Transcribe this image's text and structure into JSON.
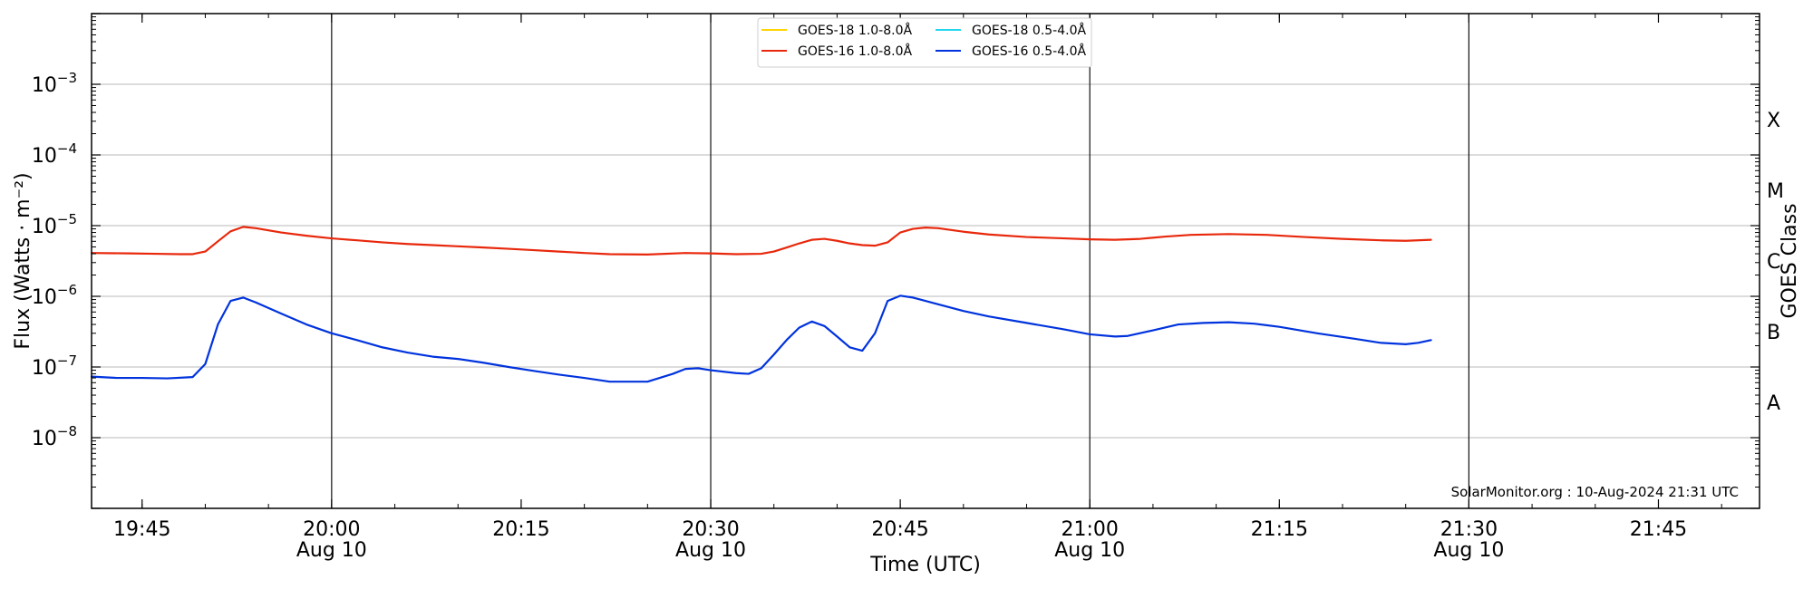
{
  "chart_data": {
    "type": "line",
    "xlabel": "Time (UTC)",
    "ylabel": "Flux (Watts · m⁻²)",
    "right_ylabel": "GOES Class",
    "x_range": [
      "19:41",
      "21:53"
    ],
    "ylim": [
      1e-09,
      0.01
    ],
    "y_scale": "log",
    "grid": "horizontal major gridlines",
    "x_ticks": [
      {
        "time": "19:45",
        "label": "19:45",
        "date_label": ""
      },
      {
        "time": "20:00",
        "label": "20:00",
        "date_label": "Aug 10"
      },
      {
        "time": "20:15",
        "label": "20:15",
        "date_label": ""
      },
      {
        "time": "20:30",
        "label": "20:30",
        "date_label": "Aug 10"
      },
      {
        "time": "20:45",
        "label": "20:45",
        "date_label": ""
      },
      {
        "time": "21:00",
        "label": "21:00",
        "date_label": "Aug 10"
      },
      {
        "time": "21:15",
        "label": "21:15",
        "date_label": ""
      },
      {
        "time": "21:30",
        "label": "21:30",
        "date_label": "Aug 10"
      },
      {
        "time": "21:45",
        "label": "21:45",
        "date_label": ""
      }
    ],
    "vertical_markers": [
      "20:00",
      "20:30",
      "21:00",
      "21:30"
    ],
    "y_ticks": [
      {
        "value": 1e-08,
        "base": "10",
        "exp": "−8"
      },
      {
        "value": 1e-07,
        "base": "10",
        "exp": "−7"
      },
      {
        "value": 1e-06,
        "base": "10",
        "exp": "−6"
      },
      {
        "value": 1e-05,
        "base": "10",
        "exp": "−5"
      },
      {
        "value": 0.0001,
        "base": "10",
        "exp": "−4"
      },
      {
        "value": 0.001,
        "base": "10",
        "exp": "−3"
      }
    ],
    "goes_classes": [
      {
        "label": "A",
        "value": 3.16e-08
      },
      {
        "label": "B",
        "value": 3.16e-07
      },
      {
        "label": "C",
        "value": 3.16e-06
      },
      {
        "label": "M",
        "value": 3.16e-05
      },
      {
        "label": "X",
        "value": 0.000316
      }
    ],
    "credit": "SolarMonitor.org : 10-Aug-2024 21:31 UTC",
    "legend": {
      "placement": "top-center",
      "entries": [
        {
          "name": "GOES-18 1.0-8.0Å",
          "color": "#ffd400"
        },
        {
          "name": "GOES-16 1.0-8.0Å",
          "color": "#e8280c"
        },
        {
          "name": "GOES-18 0.5-4.0Å",
          "color": "#22d6ee"
        },
        {
          "name": "GOES-16 0.5-4.0Å",
          "color": "#0033dd"
        }
      ]
    },
    "series": [
      {
        "name": "GOES-16 1.0-8.0Å",
        "color": "#e8280c",
        "points": [
          [
            "19:41",
            4.1e-06
          ],
          [
            "19:44",
            4.05e-06
          ],
          [
            "19:46",
            4e-06
          ],
          [
            "19:48",
            3.95e-06
          ],
          [
            "19:49",
            3.95e-06
          ],
          [
            "19:50",
            4.3e-06
          ],
          [
            "19:51",
            6e-06
          ],
          [
            "19:52",
            8.3e-06
          ],
          [
            "19:53",
            9.6e-06
          ],
          [
            "19:54",
            9.2e-06
          ],
          [
            "19:56",
            8e-06
          ],
          [
            "19:58",
            7.2e-06
          ],
          [
            "20:00",
            6.6e-06
          ],
          [
            "20:02",
            6.2e-06
          ],
          [
            "20:04",
            5.8e-06
          ],
          [
            "20:06",
            5.5e-06
          ],
          [
            "20:08",
            5.3e-06
          ],
          [
            "20:10",
            5.1e-06
          ],
          [
            "20:12",
            4.9e-06
          ],
          [
            "20:14",
            4.7e-06
          ],
          [
            "20:16",
            4.5e-06
          ],
          [
            "20:18",
            4.3e-06
          ],
          [
            "20:20",
            4.1e-06
          ],
          [
            "20:22",
            3.95e-06
          ],
          [
            "20:25",
            3.9e-06
          ],
          [
            "20:28",
            4.1e-06
          ],
          [
            "20:30",
            4.05e-06
          ],
          [
            "20:32",
            3.95e-06
          ],
          [
            "20:34",
            4e-06
          ],
          [
            "20:35",
            4.3e-06
          ],
          [
            "20:36",
            4.9e-06
          ],
          [
            "20:37",
            5.6e-06
          ],
          [
            "20:38",
            6.3e-06
          ],
          [
            "20:39",
            6.5e-06
          ],
          [
            "20:40",
            6.1e-06
          ],
          [
            "20:41",
            5.6e-06
          ],
          [
            "20:42",
            5.3e-06
          ],
          [
            "20:43",
            5.2e-06
          ],
          [
            "20:44",
            5.8e-06
          ],
          [
            "20:45",
            8e-06
          ],
          [
            "20:46",
            9e-06
          ],
          [
            "20:47",
            9.4e-06
          ],
          [
            "20:48",
            9.2e-06
          ],
          [
            "20:50",
            8.2e-06
          ],
          [
            "20:52",
            7.5e-06
          ],
          [
            "20:55",
            6.9e-06
          ],
          [
            "20:58",
            6.6e-06
          ],
          [
            "21:00",
            6.4e-06
          ],
          [
            "21:02",
            6.3e-06
          ],
          [
            "21:04",
            6.5e-06
          ],
          [
            "21:06",
            7e-06
          ],
          [
            "21:08",
            7.4e-06
          ],
          [
            "21:11",
            7.6e-06
          ],
          [
            "21:14",
            7.4e-06
          ],
          [
            "21:17",
            6.9e-06
          ],
          [
            "21:20",
            6.5e-06
          ],
          [
            "21:23",
            6.2e-06
          ],
          [
            "21:25",
            6.1e-06
          ],
          [
            "21:27",
            6.3e-06
          ]
        ]
      },
      {
        "name": "GOES-16 0.5-4.0Å",
        "color": "#0033dd",
        "points": [
          [
            "19:41",
            7.3e-08
          ],
          [
            "19:43",
            7e-08
          ],
          [
            "19:45",
            7e-08
          ],
          [
            "19:47",
            6.9e-08
          ],
          [
            "19:49",
            7.2e-08
          ],
          [
            "19:50",
            1.1e-07
          ],
          [
            "19:51",
            4e-07
          ],
          [
            "19:52",
            8.6e-07
          ],
          [
            "19:53",
            9.6e-07
          ],
          [
            "19:54",
            8.2e-07
          ],
          [
            "19:56",
            5.7e-07
          ],
          [
            "19:58",
            4e-07
          ],
          [
            "20:00",
            3e-07
          ],
          [
            "20:02",
            2.4e-07
          ],
          [
            "20:04",
            1.9e-07
          ],
          [
            "20:06",
            1.6e-07
          ],
          [
            "20:08",
            1.4e-07
          ],
          [
            "20:10",
            1.3e-07
          ],
          [
            "20:12",
            1.15e-07
          ],
          [
            "20:14",
            1e-07
          ],
          [
            "20:16",
            8.8e-08
          ],
          [
            "20:18",
            7.8e-08
          ],
          [
            "20:20",
            7e-08
          ],
          [
            "20:22",
            6.2e-08
          ],
          [
            "20:25",
            6.2e-08
          ],
          [
            "20:27",
            8e-08
          ],
          [
            "20:28",
            9.4e-08
          ],
          [
            "20:29",
            9.6e-08
          ],
          [
            "20:30",
            9e-08
          ],
          [
            "20:32",
            8.2e-08
          ],
          [
            "20:33",
            8e-08
          ],
          [
            "20:34",
            9.6e-08
          ],
          [
            "20:35",
            1.5e-07
          ],
          [
            "20:36",
            2.4e-07
          ],
          [
            "20:37",
            3.6e-07
          ],
          [
            "20:38",
            4.4e-07
          ],
          [
            "20:39",
            3.8e-07
          ],
          [
            "20:40",
            2.7e-07
          ],
          [
            "20:41",
            1.9e-07
          ],
          [
            "20:42",
            1.7e-07
          ],
          [
            "20:43",
            3e-07
          ],
          [
            "20:44",
            8.6e-07
          ],
          [
            "20:45",
            1.02e-06
          ],
          [
            "20:46",
            9.6e-07
          ],
          [
            "20:48",
            7.7e-07
          ],
          [
            "20:50",
            6.2e-07
          ],
          [
            "20:52",
            5.2e-07
          ],
          [
            "20:55",
            4.2e-07
          ],
          [
            "20:58",
            3.4e-07
          ],
          [
            "21:00",
            2.9e-07
          ],
          [
            "21:02",
            2.7e-07
          ],
          [
            "21:03",
            2.75e-07
          ],
          [
            "21:05",
            3.3e-07
          ],
          [
            "21:07",
            4e-07
          ],
          [
            "21:09",
            4.2e-07
          ],
          [
            "21:11",
            4.3e-07
          ],
          [
            "21:13",
            4.1e-07
          ],
          [
            "21:15",
            3.7e-07
          ],
          [
            "21:18",
            3e-07
          ],
          [
            "21:21",
            2.5e-07
          ],
          [
            "21:23",
            2.2e-07
          ],
          [
            "21:25",
            2.1e-07
          ],
          [
            "21:26",
            2.2e-07
          ],
          [
            "21:27",
            2.4e-07
          ]
        ]
      },
      {
        "name": "GOES-18 1.0-8.0Å",
        "color": "#ffd400",
        "points": []
      },
      {
        "name": "GOES-18 0.5-4.0Å",
        "color": "#22d6ee",
        "points": []
      }
    ]
  }
}
